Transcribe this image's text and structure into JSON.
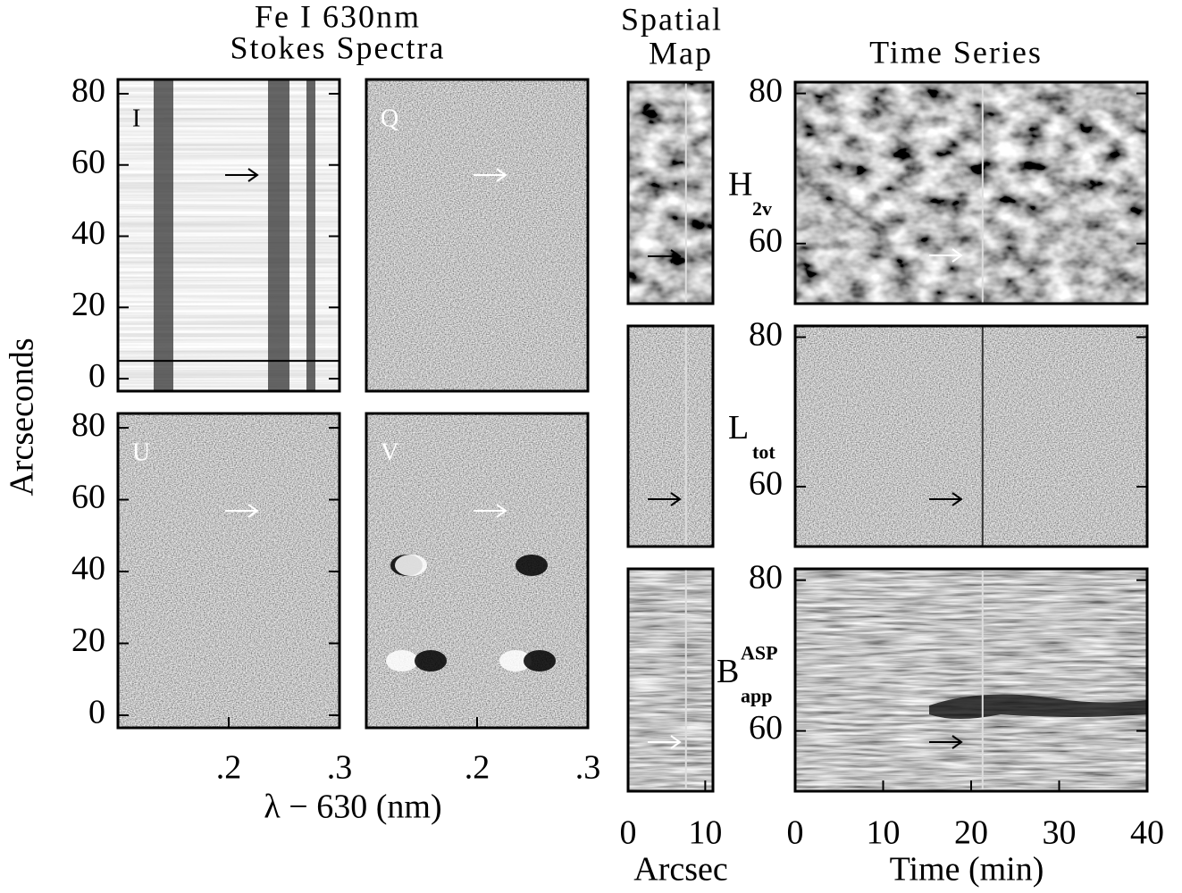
{
  "headings": [
    "Fe I 630nm",
    "Stokes Spectra",
    "Spatial",
    "Map",
    "Time Series"
  ],
  "axis_labels": {
    "spectra_y": "Arcseconds",
    "spectra_x": "λ − 630 (nm)",
    "map_x": "Arcsec",
    "time_x": "Time (min)"
  },
  "chart_data": [
    {
      "type": "image",
      "label": "I",
      "xlim": [
        0.1,
        0.3
      ],
      "ylim": [
        -3.5,
        84
      ],
      "yticks": [
        0,
        20,
        40,
        60,
        80
      ],
      "hline": 5
    },
    {
      "type": "image",
      "label": "Q",
      "xlim": [
        0.1,
        0.3
      ],
      "ylim": [
        -3.5,
        84
      ]
    },
    {
      "type": "image",
      "label": "U",
      "xlim": [
        0.1,
        0.3
      ],
      "ylim": [
        -3.5,
        84
      ],
      "yticks": [
        0,
        20,
        40,
        60,
        80
      ],
      "xticks": [
        {
          "value": 0.2,
          "label": ".2"
        },
        {
          "value": 0.3,
          "label": ".3"
        }
      ]
    },
    {
      "type": "image",
      "label": "V",
      "xlim": [
        0.1,
        0.3
      ],
      "ylim": [
        -3.5,
        84
      ],
      "xticks": [
        {
          "value": 0.2,
          "label": ".2"
        },
        {
          "value": 0.3,
          "label": ".3"
        }
      ]
    },
    {
      "type": "image",
      "xlim": [
        0,
        11
      ],
      "ylim": [
        52,
        81.5
      ],
      "vline": 7.5
    },
    {
      "type": "image",
      "xlim": [
        0,
        11
      ],
      "ylim": [
        52,
        81.5
      ],
      "vline": 7.5
    },
    {
      "type": "image",
      "xlim": [
        0,
        11
      ],
      "ylim": [
        52,
        81.5
      ],
      "vline": 7.5,
      "xticks": [
        0,
        10
      ]
    },
    {
      "type": "image",
      "xlim": [
        0,
        40
      ],
      "ylim": [
        52,
        81.5
      ],
      "yticks": [
        60,
        80
      ],
      "vline": 21.3,
      "ylabel": {
        "main": "H",
        "sub": "2v"
      }
    },
    {
      "type": "image",
      "xlim": [
        0,
        40
      ],
      "ylim": [
        52,
        81.5
      ],
      "yticks": [
        60,
        80
      ],
      "vline": 21.3,
      "ylabel": {
        "main": "L",
        "sub": "tot"
      }
    },
    {
      "type": "image",
      "xlim": [
        0,
        40
      ],
      "ylim": [
        52,
        81.5
      ],
      "yticks": [
        60,
        80
      ],
      "vline": 21.3,
      "xticks": [
        0,
        10,
        20,
        30,
        40
      ],
      "ylabel": {
        "main": "B",
        "sup": "ASP",
        "sub": "app"
      }
    }
  ]
}
